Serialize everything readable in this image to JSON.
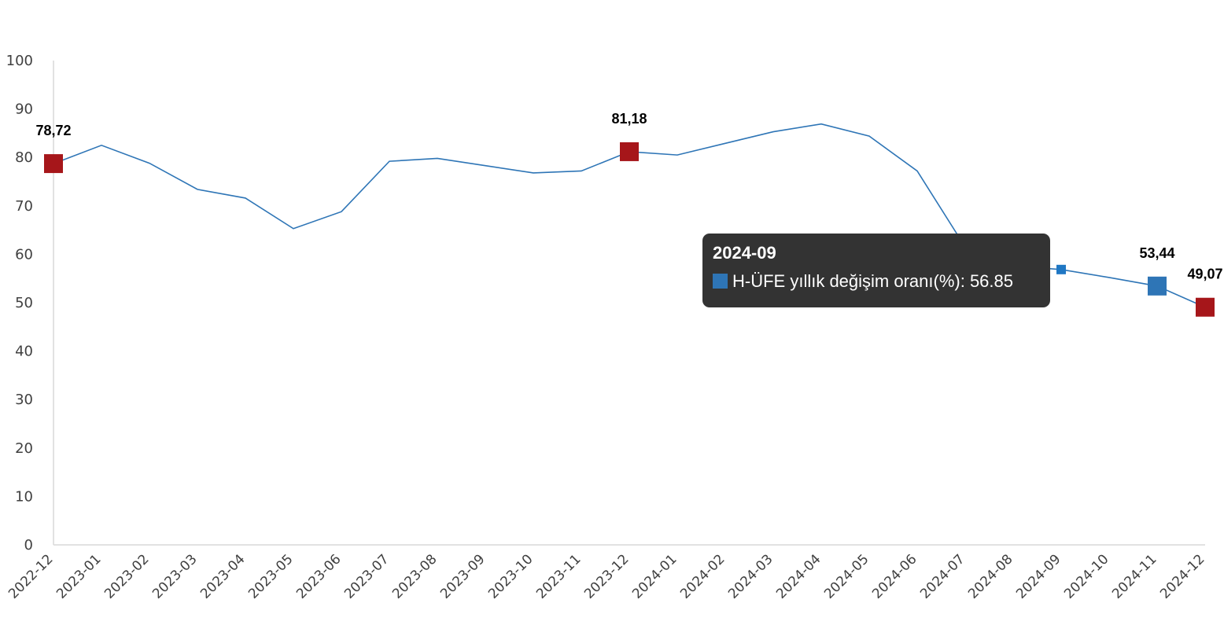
{
  "chart_data": {
    "type": "line",
    "title": "",
    "xlabel": "",
    "ylabel": "",
    "ylim": [
      0,
      100
    ],
    "yticks": [
      0,
      10,
      20,
      30,
      40,
      50,
      60,
      70,
      80,
      90,
      100
    ],
    "grid": false,
    "categories": [
      "2022-12",
      "2023-01",
      "2023-02",
      "2023-03",
      "2023-04",
      "2023-05",
      "2023-06",
      "2023-07",
      "2023-08",
      "2023-09",
      "2023-10",
      "2023-11",
      "2023-12",
      "2024-01",
      "2024-02",
      "2024-03",
      "2024-04",
      "2024-05",
      "2024-06",
      "2024-07",
      "2024-08",
      "2024-09",
      "2024-10",
      "2024-11",
      "2024-12"
    ],
    "series": [
      {
        "name": "H-ÜFE yıllık değişim oranı(%)",
        "color": "#2e75b6",
        "values": [
          78.72,
          82.5,
          78.8,
          73.4,
          71.6,
          65.3,
          68.8,
          79.2,
          79.8,
          78.3,
          76.8,
          77.2,
          81.18,
          80.5,
          82.9,
          85.3,
          86.9,
          84.4,
          77.2,
          61.5,
          57.6,
          56.85,
          55.2,
          53.44,
          49.07
        ]
      }
    ],
    "data_labels": [
      {
        "category": "2022-12",
        "text": "78,72",
        "marker_color": "#a6161a"
      },
      {
        "category": "2023-12",
        "text": "81,18",
        "marker_color": "#a6161a"
      },
      {
        "category": "2024-11",
        "text": "53,44",
        "marker_color": "#2e75b6"
      },
      {
        "category": "2024-12",
        "text": "49,07",
        "marker_color": "#a6161a"
      }
    ],
    "tooltip": {
      "category": "2024-09",
      "title": "2024-09",
      "text": "H-ÜFE yıllık değişim oranı(%): 56.85",
      "swatch_color": "#2e75b6",
      "marker_color": "#1f77c4"
    }
  }
}
